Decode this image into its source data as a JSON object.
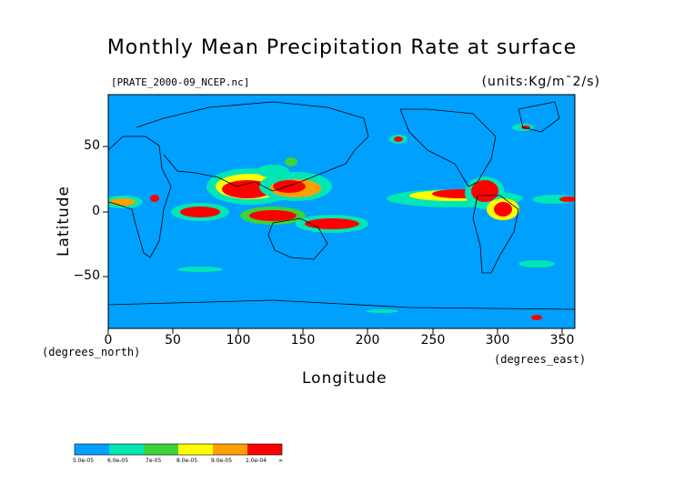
{
  "title": "Monthly Mean Precipitation Rate at surface",
  "file_label": "[PRATE_2000-09_NCEP.nc]",
  "units_label": "(units:Kg/m¯2/s)",
  "map": {
    "x_axis": {
      "label": "Longitude",
      "unit_note": "(degrees_east)",
      "ticks": [
        "0",
        "50",
        "100",
        "150",
        "200",
        "250",
        "300",
        "350"
      ]
    },
    "y_axis": {
      "label": "Latitude",
      "unit_note": "(degrees_north)",
      "ticks": [
        "50",
        "0",
        "−50"
      ]
    },
    "lon_range": [
      0,
      360
    ],
    "lat_range": [
      -90,
      90
    ]
  },
  "legend": {
    "bins": [
      {
        "label": "5.0e-05",
        "color": "#00a0ff"
      },
      {
        "label": "6.0e-05",
        "color": "#00e6b4"
      },
      {
        "label": "7e-05",
        "color": "#3cd23c"
      },
      {
        "label": "8.0e-05",
        "color": "#ffff00"
      },
      {
        "label": "9.0e-05",
        "color": "#ffa000"
      },
      {
        "label": "1.0e-04",
        "color": "#ff0000"
      }
    ],
    "end_label": "∞"
  }
}
